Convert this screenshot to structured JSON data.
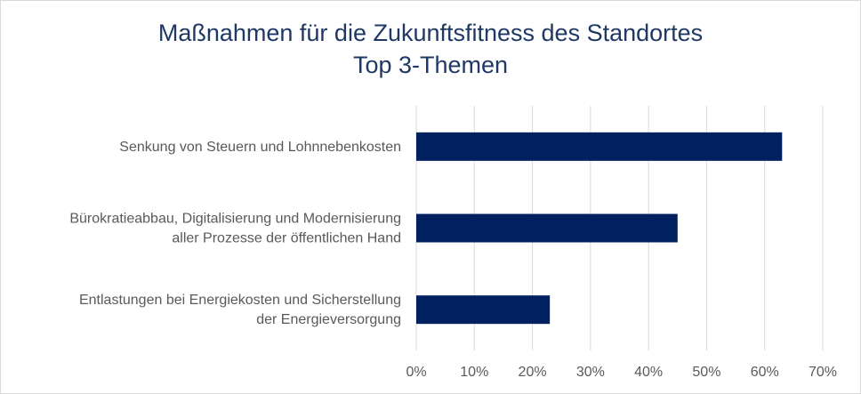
{
  "chart_data": {
    "type": "bar",
    "orientation": "horizontal",
    "title": "Maßnahmen für die Zukunftsfitness des Standortes",
    "subtitle": "Top 3-Themen",
    "categories": [
      [
        "Senkung von Steuern und Lohnnebenkosten"
      ],
      [
        "Bürokratieabbau, Digitalisierung und Modernisierung",
        "aller Prozesse der öffentlichen Hand"
      ],
      [
        "Entlastungen bei Energiekosten und Sicherstellung",
        "der Energieversorgung"
      ]
    ],
    "values": [
      63,
      45,
      23
    ],
    "xlim": [
      0,
      70
    ],
    "xticks": [
      0,
      10,
      20,
      30,
      40,
      50,
      60,
      70
    ],
    "xtick_labels": [
      "0%",
      "10%",
      "20%",
      "30%",
      "40%",
      "50%",
      "60%",
      "70%"
    ],
    "xlabel": "",
    "ylabel": "",
    "grid": true,
    "legend": "none",
    "bar_color": "#002060",
    "grid_color": "#d9d9d9"
  }
}
